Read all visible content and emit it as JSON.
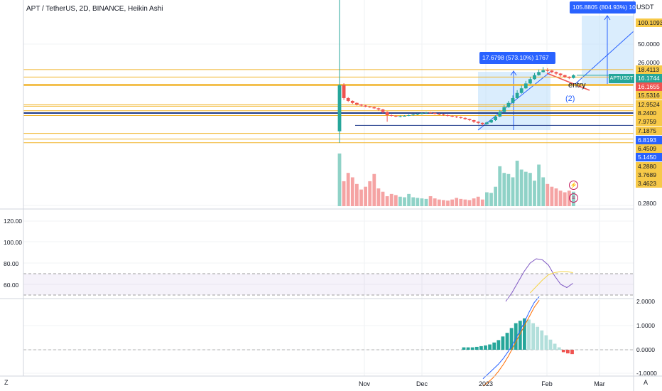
{
  "header": {
    "title": "APT / TetherUS, 2D, BINANCE, Heikin Ashi",
    "unit": "USDT",
    "corner_left": "Z",
    "corner_right": "A"
  },
  "colors": {
    "up": "#26a69a",
    "down": "#ef5350",
    "volume_up": "#8fd2c7",
    "volume_down": "#f5a3a3",
    "level_line": "#f0b42a",
    "blue_line": "#1e3a8a",
    "measure_fill": "#bbdefb",
    "measure_line": "#2962ff",
    "rsi_line": "#7e57c2",
    "rsi_ma": "#f5d547",
    "macd_line": "#2962ff",
    "signal_line": "#ff6d00"
  },
  "price_tags": [
    {
      "text": "100.1093",
      "bg": "#f7c948",
      "fg": "#131722"
    },
    {
      "text": "18.4113",
      "bg": "#f7c948",
      "fg": "#131722"
    },
    {
      "text": "16.1744",
      "bg": "#26a69a",
      "fg": "#ffffff"
    },
    {
      "text": "16.1655",
      "bg": "#ef5350",
      "fg": "#ffffff"
    },
    {
      "text": "15.5316",
      "bg": "#f7c948",
      "fg": "#131722"
    },
    {
      "text": "12.9524",
      "bg": "#f7c948",
      "fg": "#131722"
    },
    {
      "text": "8.2400",
      "bg": "#f7c948",
      "fg": "#131722"
    },
    {
      "text": "7.9759",
      "bg": "#f7c948",
      "fg": "#131722"
    },
    {
      "text": "7.1875",
      "bg": "#f7c948",
      "fg": "#131722"
    },
    {
      "text": "6.8193",
      "bg": "#2962ff",
      "fg": "#ffffff"
    },
    {
      "text": "6.4509",
      "bg": "#f7c948",
      "fg": "#131722"
    },
    {
      "text": "5.1450",
      "bg": "#2962ff",
      "fg": "#ffffff"
    },
    {
      "text": "4.2880",
      "bg": "#f7c948",
      "fg": "#131722"
    },
    {
      "text": "3.7689",
      "bg": "#f7c948",
      "fg": "#131722"
    },
    {
      "text": "3.4623",
      "bg": "#f7c948",
      "fg": "#131722"
    }
  ],
  "price_axis_ticks": [
    "50.0000",
    "26.0000",
    "0.2800"
  ],
  "rsi_axis_ticks": [
    "120.00",
    "100.00",
    "80.00",
    "60.00"
  ],
  "macd_axis_ticks": [
    "2.0000",
    "1.0000",
    "0.0000",
    "-1.0000"
  ],
  "x_axis_labels": [
    "Nov",
    "Dec",
    "2023",
    "Feb",
    "Mar"
  ],
  "annotations": {
    "measure_1": "17.6798 (573.10%) 1767",
    "measure_2": "105.8805 (804.93%) 10588",
    "symbol_badge": "APTUSDT",
    "entry_text": "entry",
    "wave_text": "(2)",
    "lightning_icon": "lightning-icon",
    "flag_icon": "us-flag-icon"
  },
  "chart_data": [
    {
      "type": "candlestick",
      "title": "APT / TetherUS, 2D, BINANCE, Heikin Ashi",
      "ylabel": "USDT",
      "scale": "log",
      "x_labels": [
        "Nov",
        "Dec",
        "2023",
        "Feb",
        "Mar"
      ],
      "candles": [
        {
          "o": 4.5,
          "c": 12.9,
          "h": 100.1,
          "l": 3.46
        },
        {
          "o": 12.9,
          "c": 9.6,
          "h": 13.5,
          "l": 9.2
        },
        {
          "o": 9.6,
          "c": 9.0,
          "h": 9.8,
          "l": 8.8
        },
        {
          "o": 9.0,
          "c": 8.6,
          "h": 9.1,
          "l": 8.4
        },
        {
          "o": 8.6,
          "c": 8.3,
          "h": 8.7,
          "l": 8.1
        },
        {
          "o": 8.3,
          "c": 8.1,
          "h": 8.4,
          "l": 7.9
        },
        {
          "o": 8.1,
          "c": 7.9,
          "h": 8.2,
          "l": 7.8
        },
        {
          "o": 7.9,
          "c": 7.8,
          "h": 8.0,
          "l": 7.7
        },
        {
          "o": 7.8,
          "c": 7.6,
          "h": 7.9,
          "l": 7.5
        },
        {
          "o": 7.6,
          "c": 7.4,
          "h": 7.7,
          "l": 7.2
        },
        {
          "o": 7.4,
          "c": 7.0,
          "h": 7.5,
          "l": 6.8
        },
        {
          "o": 7.0,
          "c": 6.5,
          "h": 7.1,
          "l": 5.6
        },
        {
          "o": 6.5,
          "c": 6.4,
          "h": 6.6,
          "l": 6.3
        },
        {
          "o": 6.4,
          "c": 6.3,
          "h": 6.5,
          "l": 6.2
        },
        {
          "o": 6.3,
          "c": 6.35,
          "h": 6.45,
          "l": 6.2
        },
        {
          "o": 6.35,
          "c": 6.4,
          "h": 6.5,
          "l": 6.3
        },
        {
          "o": 6.4,
          "c": 6.5,
          "h": 6.6,
          "l": 6.35
        },
        {
          "o": 6.5,
          "c": 6.6,
          "h": 6.7,
          "l": 6.4
        },
        {
          "o": 6.6,
          "c": 6.7,
          "h": 6.8,
          "l": 6.5
        },
        {
          "o": 6.7,
          "c": 6.8,
          "h": 6.9,
          "l": 6.6
        },
        {
          "o": 6.8,
          "c": 6.9,
          "h": 7.0,
          "l": 6.7
        },
        {
          "o": 6.9,
          "c": 6.85,
          "h": 7.0,
          "l": 6.75
        },
        {
          "o": 6.85,
          "c": 6.7,
          "h": 6.9,
          "l": 6.6
        },
        {
          "o": 6.7,
          "c": 6.6,
          "h": 6.8,
          "l": 6.5
        },
        {
          "o": 6.6,
          "c": 6.5,
          "h": 6.7,
          "l": 6.4
        },
        {
          "o": 6.5,
          "c": 6.4,
          "h": 6.6,
          "l": 6.3
        },
        {
          "o": 6.4,
          "c": 6.3,
          "h": 6.5,
          "l": 6.2
        },
        {
          "o": 6.3,
          "c": 6.2,
          "h": 6.4,
          "l": 6.1
        },
        {
          "o": 6.2,
          "c": 6.1,
          "h": 6.3,
          "l": 6.0
        },
        {
          "o": 6.1,
          "c": 5.95,
          "h": 6.2,
          "l": 5.85
        },
        {
          "o": 5.95,
          "c": 5.8,
          "h": 6.0,
          "l": 5.7
        },
        {
          "o": 5.8,
          "c": 5.6,
          "h": 5.85,
          "l": 5.45
        },
        {
          "o": 5.6,
          "c": 5.45,
          "h": 5.65,
          "l": 5.3
        },
        {
          "o": 5.45,
          "c": 5.3,
          "h": 5.5,
          "l": 5.145
        },
        {
          "o": 5.3,
          "c": 5.5,
          "h": 5.6,
          "l": 5.2
        },
        {
          "o": 5.5,
          "c": 5.8,
          "h": 5.9,
          "l": 5.45
        },
        {
          "o": 5.8,
          "c": 6.3,
          "h": 6.5,
          "l": 5.7
        },
        {
          "o": 6.3,
          "c": 7.0,
          "h": 7.3,
          "l": 6.2
        },
        {
          "o": 7.0,
          "c": 7.8,
          "h": 8.2,
          "l": 6.9
        },
        {
          "o": 7.8,
          "c": 8.6,
          "h": 9.0,
          "l": 7.7
        },
        {
          "o": 8.6,
          "c": 9.6,
          "h": 10.2,
          "l": 8.5
        },
        {
          "o": 9.6,
          "c": 10.8,
          "h": 11.5,
          "l": 9.5
        },
        {
          "o": 10.8,
          "c": 12.0,
          "h": 12.8,
          "l": 10.6
        },
        {
          "o": 12.0,
          "c": 13.4,
          "h": 14.2,
          "l": 11.8
        },
        {
          "o": 13.4,
          "c": 14.8,
          "h": 15.6,
          "l": 13.2
        },
        {
          "o": 14.8,
          "c": 16.2,
          "h": 17.0,
          "l": 14.6
        },
        {
          "o": 16.2,
          "c": 17.4,
          "h": 18.4,
          "l": 16.0
        },
        {
          "o": 17.4,
          "c": 18.1,
          "h": 19.5,
          "l": 17.2
        },
        {
          "o": 18.1,
          "c": 18.0,
          "h": 19.0,
          "l": 17.4
        },
        {
          "o": 18.0,
          "c": 17.4,
          "h": 18.2,
          "l": 16.9
        },
        {
          "o": 17.4,
          "c": 16.8,
          "h": 17.6,
          "l": 16.3
        },
        {
          "o": 16.8,
          "c": 16.2,
          "h": 17.0,
          "l": 15.7
        },
        {
          "o": 16.2,
          "c": 15.6,
          "h": 16.4,
          "l": 15.2
        },
        {
          "o": 15.6,
          "c": 15.2,
          "h": 15.8,
          "l": 14.8
        },
        {
          "o": 15.2,
          "c": 16.17,
          "h": 16.5,
          "l": 15.0
        }
      ],
      "volume": [
        95,
        45,
        60,
        52,
        40,
        30,
        35,
        45,
        58,
        32,
        26,
        18,
        22,
        20,
        17,
        16,
        22,
        16,
        15,
        14,
        13,
        18,
        14,
        12,
        11,
        10,
        12,
        15,
        13,
        12,
        11,
        14,
        17,
        12,
        25,
        24,
        35,
        72,
        60,
        58,
        52,
        82,
        66,
        62,
        60,
        46,
        75,
        52,
        40,
        35,
        32,
        28,
        25,
        28,
        26
      ],
      "levels": [
        100.1093,
        18.4113,
        15.5316,
        12.9524,
        8.24,
        7.9759,
        7.1875,
        6.4509,
        4.288,
        3.7689,
        3.4623
      ],
      "blue_levels": [
        6.8193,
        5.145
      ],
      "last_price": 16.1744
    },
    {
      "type": "line",
      "title": "",
      "y_ticks": [
        120,
        100,
        80,
        60
      ],
      "band": [
        50,
        70
      ],
      "series": [
        {
          "values": [
            44,
            52,
            62,
            72,
            80,
            84,
            83,
            78,
            68,
            60,
            57,
            61
          ]
        },
        {
          "values": [
            null,
            null,
            null,
            null,
            52,
            58,
            64,
            69,
            71,
            72,
            72,
            71
          ]
        }
      ]
    },
    {
      "type": "bar",
      "title": "",
      "y_ticks": [
        2.0,
        1.0,
        0.0,
        -1.0
      ],
      "histogram": [
        0.1,
        0.1,
        0.1,
        0.12,
        0.15,
        0.18,
        0.22,
        0.3,
        0.4,
        0.55,
        0.7,
        0.9,
        1.1,
        1.2,
        1.3,
        1.25,
        1.1,
        0.95,
        0.8,
        0.6,
        0.42,
        0.25,
        0.1,
        -0.1,
        -0.15,
        -0.18
      ],
      "series": [
        {
          "values": [
            -1.2,
            -1.0,
            -0.8,
            -0.6,
            -0.35,
            -0.05,
            0.3,
            0.7,
            1.1,
            1.55,
            1.95,
            2.2
          ]
        },
        {
          "values": [
            -1.5,
            -1.35,
            -1.15,
            -0.9,
            -0.6,
            -0.25,
            0.15,
            0.55,
            0.95,
            1.35,
            1.75,
            2.05
          ]
        }
      ]
    }
  ]
}
